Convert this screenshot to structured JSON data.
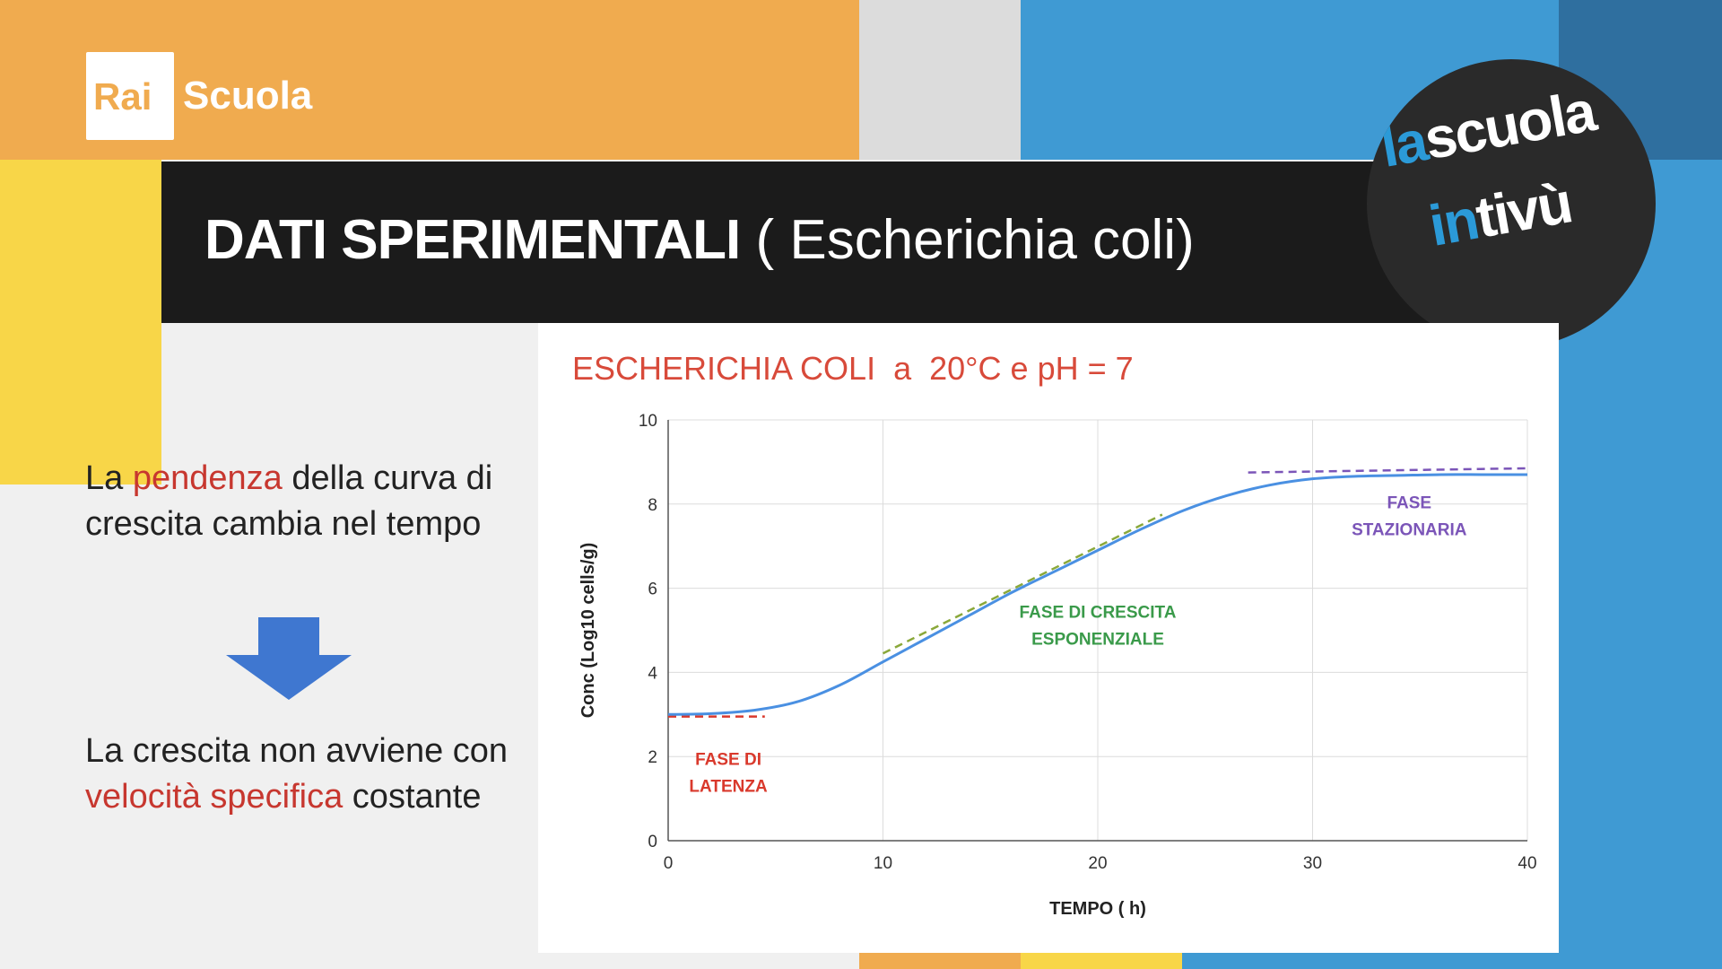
{
  "branding": {
    "rai": "Rai",
    "scuola": "Scuola",
    "badge_line1_a": "la",
    "badge_line1_b": "scuola",
    "badge_line2_a": "in",
    "badge_line2_b": "tivù"
  },
  "title": {
    "bold": "DATI SPERIMENTALI",
    "normal": " ( Escherichia coli)"
  },
  "left": {
    "p1_pre": "La ",
    "p1_hl": "pendenza",
    "p1_post": " della curva di crescita cambia nel tempo",
    "p2_pre": "La crescita non avviene con ",
    "p2_hl": "velocità specifica",
    "p2_post": " costante"
  },
  "colors": {
    "orange": "#f0ab4f",
    "yellow": "#f8d648",
    "blue": "#3f9ad3",
    "highlight_red": "#c7372f",
    "curve": "#4a90e2",
    "latenza": "#d9392c",
    "esponenziale": "#8aa83a",
    "stazionaria": "#7b55b8",
    "esp_label": "#3a9a4a"
  },
  "chart_data": {
    "type": "line",
    "title": "ESCHERICHIA COLI  a  20°C e pH = 7",
    "xlabel": "TEMPO ( h)",
    "ylabel": "Conc (Log10 cells/g)",
    "xlim": [
      0,
      40
    ],
    "ylim": [
      0,
      10
    ],
    "xticks": [
      0,
      10,
      20,
      30,
      40
    ],
    "yticks": [
      0,
      2,
      4,
      6,
      8,
      10
    ],
    "grid": true,
    "series": [
      {
        "values": [
          [
            0,
            3.0
          ],
          [
            2,
            3.02
          ],
          [
            4,
            3.1
          ],
          [
            6,
            3.3
          ],
          [
            8,
            3.7
          ],
          [
            10,
            4.25
          ],
          [
            12,
            4.8
          ],
          [
            14,
            5.35
          ],
          [
            16,
            5.9
          ],
          [
            18,
            6.4
          ],
          [
            20,
            6.9
          ],
          [
            22,
            7.4
          ],
          [
            24,
            7.85
          ],
          [
            26,
            8.2
          ],
          [
            28,
            8.45
          ],
          [
            30,
            8.6
          ],
          [
            32,
            8.66
          ],
          [
            34,
            8.68
          ],
          [
            36,
            8.7
          ],
          [
            38,
            8.7
          ],
          [
            40,
            8.7
          ]
        ]
      }
    ],
    "reference_lines": [
      {
        "x": [
          0,
          4.5
        ],
        "y": [
          2.95,
          2.95
        ],
        "color": "#d9392c"
      },
      {
        "x": [
          10,
          23
        ],
        "y": [
          4.45,
          7.75
        ],
        "color": "#8aa83a"
      },
      {
        "x": [
          27,
          40
        ],
        "y": [
          8.75,
          8.85
        ],
        "color": "#7b55b8"
      }
    ],
    "annotations": [
      {
        "lines": [
          "FASE DI",
          "LATENZA"
        ],
        "x": 2.8,
        "y": 1.8,
        "color": "#d9392c"
      },
      {
        "lines": [
          "FASE DI CRESCITA",
          "ESPONENZIALE"
        ],
        "x": 20,
        "y": 5.3,
        "color": "#3a9a4a"
      },
      {
        "lines": [
          "FASE",
          "STAZIONARIA"
        ],
        "x": 34.5,
        "y": 7.9,
        "color": "#7b55b8"
      }
    ]
  }
}
